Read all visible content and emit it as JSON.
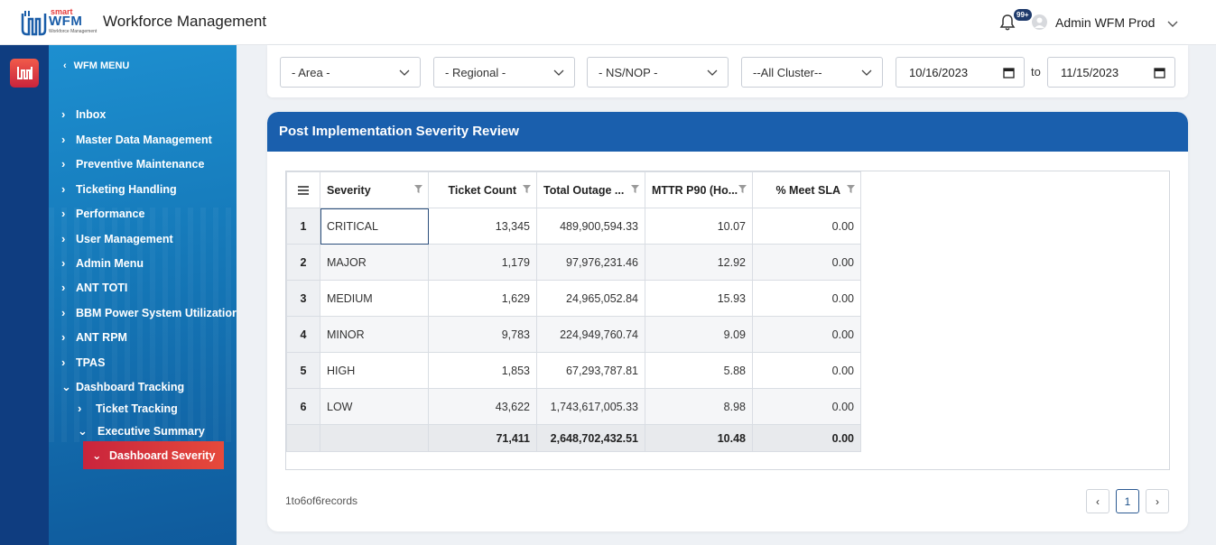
{
  "header": {
    "brand_small": "smart",
    "brand_big": "WFM",
    "brand_tag": "Workforce Management",
    "app_title": "Workforce Management",
    "notifications_badge": "99+",
    "user_name": "Admin WFM Prod"
  },
  "sidebar": {
    "menu_title": "WFM MENU",
    "items": [
      {
        "label": "Inbox"
      },
      {
        "label": "Master Data Management"
      },
      {
        "label": "Preventive Maintenance"
      },
      {
        "label": "Ticketing Handling"
      },
      {
        "label": "Performance"
      },
      {
        "label": "User Management"
      },
      {
        "label": "Admin Menu"
      },
      {
        "label": "ANT TOTI"
      },
      {
        "label": "BBM Power System Utilizatior"
      },
      {
        "label": "ANT RPM"
      },
      {
        "label": "TPAS"
      },
      {
        "label": "Dashboard Tracking"
      }
    ],
    "sub_items": [
      {
        "label": "Ticket Tracking"
      },
      {
        "label": "Executive Summary"
      }
    ],
    "active_item": "Dashboard Severity"
  },
  "filters": {
    "area": "- Area -",
    "regional": "- Regional -",
    "ns_nop": "- NS/NOP -",
    "cluster": "--All Cluster--",
    "date_from": "10/16/2023",
    "to_label": "to",
    "date_to": "11/15/2023"
  },
  "card": {
    "title": "Post Implementation Severity Review"
  },
  "table": {
    "columns": [
      "Severity",
      "Ticket Count",
      "Total Outage ...",
      "MTTR P90 (Ho...",
      "% Meet SLA"
    ],
    "rows": [
      {
        "num": "1",
        "severity": "CRITICAL",
        "count": "13,345",
        "outage": "489,900,594.33",
        "mttr": "10.07",
        "sla": "0.00"
      },
      {
        "num": "2",
        "severity": "MAJOR",
        "count": "1,179",
        "outage": "97,976,231.46",
        "mttr": "12.92",
        "sla": "0.00"
      },
      {
        "num": "3",
        "severity": "MEDIUM",
        "count": "1,629",
        "outage": "24,965,052.84",
        "mttr": "15.93",
        "sla": "0.00"
      },
      {
        "num": "4",
        "severity": "MINOR",
        "count": "9,783",
        "outage": "224,949,760.74",
        "mttr": "9.09",
        "sla": "0.00"
      },
      {
        "num": "5",
        "severity": "HIGH",
        "count": "1,853",
        "outage": "67,293,787.81",
        "mttr": "5.88",
        "sla": "0.00"
      },
      {
        "num": "6",
        "severity": "LOW",
        "count": "43,622",
        "outage": "1,743,617,005.33",
        "mttr": "8.98",
        "sla": "0.00"
      }
    ],
    "totals": {
      "count": "71,411",
      "outage": "2,648,702,432.51",
      "mttr": "10.48",
      "sla": "0.00"
    }
  },
  "footer": {
    "records": "1to6of6records",
    "prev": "‹",
    "page": "1",
    "next": "›"
  }
}
